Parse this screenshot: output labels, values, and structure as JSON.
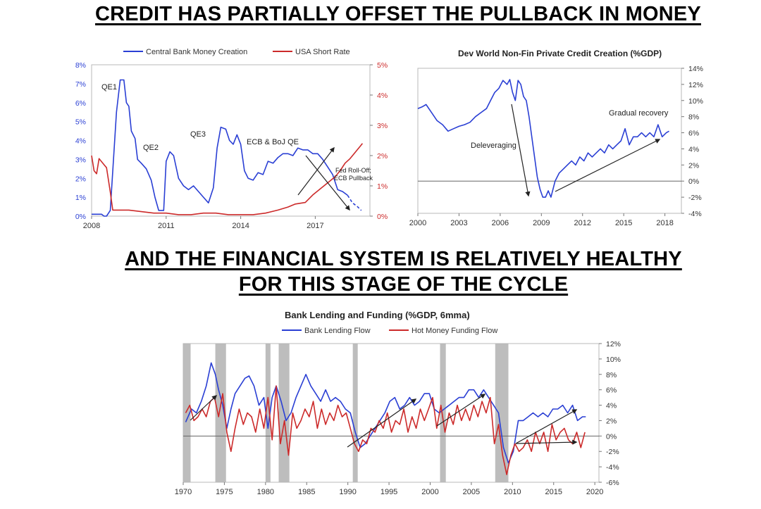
{
  "headlines": {
    "top": "CREDIT HAS PARTIALLY OFFSET THE PULLBACK IN MONEY",
    "bottom_line1": "AND THE FINANCIAL SYSTEM IS RELATIVELY HEALTHY",
    "bottom_line2": "FOR THIS STAGE OF THE CYCLE"
  },
  "colors": {
    "blue": "#2a3fd4",
    "red": "#cc2a2a",
    "shade": "#bdbdbd",
    "axis": "#777777"
  },
  "chart_data": [
    {
      "id": "money_rate",
      "type": "line",
      "title": "",
      "legend": [
        "Central Bank Money Creation",
        "USA Short Rate"
      ],
      "legend_placement": "top",
      "xlim": [
        2008,
        2019.2
      ],
      "x_ticks": [
        2008,
        2011,
        2014,
        2017
      ],
      "y_left": {
        "ticks": [
          0,
          1,
          2,
          3,
          4,
          5,
          6,
          7,
          8
        ],
        "labels": [
          "0%",
          "1%",
          "2%",
          "3%",
          "4%",
          "5%",
          "6%",
          "7%",
          "8%"
        ],
        "lim": [
          0,
          8
        ]
      },
      "y_right": {
        "ticks": [
          0,
          1,
          2,
          3,
          4,
          5
        ],
        "labels": [
          "0%",
          "1%",
          "2%",
          "3%",
          "4%",
          "5%"
        ],
        "lim": [
          0,
          5
        ]
      },
      "annotations": [
        "QE1",
        "QE2",
        "QE3",
        "ECB & BoJ QE",
        "Fed Roll-Off;",
        "ECB Pullback"
      ],
      "series": [
        {
          "name": "Central Bank Money Creation",
          "axis": "left",
          "color": "#2a3fd4",
          "x": [
            2008.0,
            2008.4,
            2008.5,
            2008.6,
            2008.75,
            2009.0,
            2009.15,
            2009.3,
            2009.4,
            2009.5,
            2009.6,
            2009.75,
            2009.85,
            2010.0,
            2010.2,
            2010.4,
            2010.55,
            2010.7,
            2010.9,
            2011.0,
            2011.15,
            2011.3,
            2011.5,
            2011.7,
            2011.9,
            2012.1,
            2012.3,
            2012.5,
            2012.7,
            2012.9,
            2013.05,
            2013.2,
            2013.4,
            2013.55,
            2013.7,
            2013.85,
            2014.0,
            2014.15,
            2014.3,
            2014.5,
            2014.7,
            2014.9,
            2015.1,
            2015.3,
            2015.5,
            2015.7,
            2015.9,
            2016.1,
            2016.3,
            2016.5,
            2016.7,
            2016.9,
            2017.1,
            2017.3,
            2017.5,
            2017.7,
            2017.9,
            2018.1,
            2018.3,
            2018.5,
            2018.7,
            2018.85
          ],
          "y": [
            0.1,
            0.1,
            0.0,
            0.0,
            0.3,
            5.5,
            7.2,
            7.2,
            6.0,
            5.8,
            4.5,
            4.1,
            3.0,
            2.8,
            2.5,
            1.9,
            1.0,
            0.3,
            0.3,
            2.9,
            3.4,
            3.2,
            2.0,
            1.6,
            1.4,
            1.6,
            1.3,
            1.0,
            0.7,
            1.5,
            3.6,
            4.7,
            4.6,
            4.0,
            3.8,
            4.3,
            3.8,
            2.4,
            2.0,
            1.9,
            2.3,
            2.2,
            2.9,
            2.8,
            3.1,
            3.3,
            3.3,
            3.2,
            3.6,
            3.5,
            3.5,
            3.3,
            3.3,
            3.0,
            2.6,
            2.2,
            1.4,
            1.3,
            1.1,
            0.7,
            0.5,
            0.3
          ],
          "dashed_from_x": 2018.5
        },
        {
          "name": "USA Short Rate",
          "axis": "right",
          "color": "#cc2a2a",
          "x": [
            2008.0,
            2008.1,
            2008.2,
            2008.3,
            2008.4,
            2008.5,
            2008.6,
            2008.75,
            2008.85,
            2009.0,
            2009.5,
            2010.0,
            2010.5,
            2011.0,
            2011.5,
            2012.0,
            2012.5,
            2013.0,
            2013.5,
            2014.0,
            2014.5,
            2015.0,
            2015.5,
            2015.9,
            2016.2,
            2016.6,
            2016.9,
            2017.2,
            2017.5,
            2017.8,
            2018.0,
            2018.2,
            2018.4,
            2018.6,
            2018.8,
            2018.9
          ],
          "y": [
            2.0,
            1.5,
            1.4,
            1.9,
            1.8,
            1.7,
            1.6,
            0.8,
            0.2,
            0.2,
            0.2,
            0.15,
            0.1,
            0.1,
            0.05,
            0.05,
            0.1,
            0.1,
            0.05,
            0.05,
            0.05,
            0.1,
            0.2,
            0.3,
            0.4,
            0.45,
            0.7,
            0.9,
            1.1,
            1.3,
            1.5,
            1.75,
            1.9,
            2.1,
            2.3,
            2.4
          ]
        }
      ]
    },
    {
      "id": "private_credit",
      "type": "line",
      "title": "Dev World Non-Fin Private Credit Creation (%GDP)",
      "xlim": [
        2000,
        2019.2
      ],
      "x_ticks": [
        2000,
        2003,
        2006,
        2009,
        2012,
        2015,
        2018
      ],
      "y_right": {
        "ticks": [
          -4,
          -2,
          0,
          2,
          4,
          6,
          8,
          10,
          12,
          14
        ],
        "labels": [
          "-4%",
          "-2%",
          "0%",
          "2%",
          "4%",
          "6%",
          "8%",
          "10%",
          "12%",
          "14%"
        ],
        "lim": [
          -4,
          14
        ]
      },
      "annotations": [
        "Deleveraging",
        "Gradual recovery"
      ],
      "series": [
        {
          "name": "",
          "axis": "right",
          "color": "#2a3fd4",
          "x": [
            2000.0,
            2000.3,
            2000.6,
            2001.0,
            2001.4,
            2001.8,
            2002.2,
            2002.6,
            2003.0,
            2003.4,
            2003.8,
            2004.2,
            2004.6,
            2005.0,
            2005.3,
            2005.6,
            2005.9,
            2006.2,
            2006.5,
            2006.7,
            2006.9,
            2007.1,
            2007.3,
            2007.5,
            2007.7,
            2007.9,
            2008.1,
            2008.3,
            2008.5,
            2008.7,
            2008.9,
            2009.1,
            2009.3,
            2009.5,
            2009.7,
            2010.0,
            2010.3,
            2010.6,
            2010.9,
            2011.2,
            2011.5,
            2011.8,
            2012.1,
            2012.4,
            2012.7,
            2013.0,
            2013.3,
            2013.6,
            2013.9,
            2014.2,
            2014.5,
            2014.8,
            2015.1,
            2015.4,
            2015.7,
            2016.0,
            2016.3,
            2016.6,
            2016.9,
            2017.2,
            2017.5,
            2017.8,
            2018.1,
            2018.3
          ],
          "y": [
            9.0,
            9.2,
            9.5,
            8.5,
            7.5,
            7.0,
            6.2,
            6.5,
            6.8,
            7.0,
            7.3,
            8.0,
            8.5,
            9.0,
            10.0,
            11.0,
            11.5,
            12.5,
            12.0,
            12.6,
            11.0,
            10.0,
            12.5,
            12.0,
            10.5,
            10.0,
            8.0,
            5.5,
            3.0,
            0.5,
            -1.0,
            -2.0,
            -2.0,
            -1.2,
            -2.0,
            0.0,
            1.0,
            1.5,
            2.0,
            2.5,
            2.0,
            3.0,
            2.5,
            3.5,
            3.0,
            3.5,
            4.0,
            3.5,
            4.5,
            4.0,
            4.5,
            5.0,
            6.5,
            4.5,
            5.5,
            5.5,
            6.0,
            5.5,
            6.0,
            5.5,
            7.0,
            5.5,
            6.0,
            6.2
          ]
        }
      ]
    },
    {
      "id": "bank_lending",
      "type": "line",
      "title": "Bank Lending and Funding (%GDP, 6mma)",
      "legend": [
        "Bank Lending Flow",
        "Hot Money Funding Flow"
      ],
      "legend_placement": "top",
      "xlim": [
        1970,
        2020.5
      ],
      "x_ticks": [
        1970,
        1975,
        1980,
        1985,
        1990,
        1995,
        2000,
        2005,
        2010,
        2015,
        2020
      ],
      "y_right": {
        "ticks": [
          -6,
          -4,
          -2,
          0,
          2,
          4,
          6,
          8,
          10,
          12
        ],
        "labels": [
          "-6%",
          "-4%",
          "-2%",
          "0%",
          "2%",
          "4%",
          "6%",
          "8%",
          "10%",
          "12%"
        ],
        "lim": [
          -6,
          12
        ]
      },
      "recessions": [
        [
          1970.0,
          1970.9
        ],
        [
          1973.9,
          1975.2
        ],
        [
          1980.0,
          1980.6
        ],
        [
          1981.6,
          1982.9
        ],
        [
          1990.6,
          1991.2
        ],
        [
          2001.2,
          2001.9
        ],
        [
          2007.9,
          2009.5
        ]
      ],
      "series": [
        {
          "name": "Bank Lending Flow",
          "axis": "right",
          "color": "#2a3fd4",
          "x": [
            1970.3,
            1971.0,
            1971.6,
            1972.2,
            1972.8,
            1973.4,
            1973.9,
            1974.3,
            1974.8,
            1975.3,
            1975.8,
            1976.3,
            1976.9,
            1977.5,
            1978.0,
            1978.6,
            1979.2,
            1979.8,
            1980.3,
            1980.8,
            1981.3,
            1981.9,
            1982.5,
            1983.1,
            1983.7,
            1984.3,
            1984.9,
            1985.5,
            1986.1,
            1986.7,
            1987.3,
            1987.9,
            1988.5,
            1989.1,
            1989.7,
            1990.3,
            1990.9,
            1991.5,
            1992.1,
            1992.7,
            1993.3,
            1993.9,
            1994.5,
            1995.1,
            1995.7,
            1996.3,
            1996.9,
            1997.5,
            1998.1,
            1998.7,
            1999.3,
            1999.9,
            2000.5,
            2001.1,
            2001.7,
            2002.3,
            2002.9,
            2003.5,
            2004.1,
            2004.7,
            2005.3,
            2005.9,
            2006.5,
            2007.1,
            2007.7,
            2008.3,
            2008.9,
            2009.5,
            2010.1,
            2010.7,
            2011.3,
            2011.9,
            2012.5,
            2013.1,
            2013.7,
            2014.3,
            2014.9,
            2015.5,
            2016.1,
            2016.7,
            2017.3,
            2017.9,
            2018.5,
            2018.9
          ],
          "x_note": "",
          "y": [
            1.8,
            3.5,
            3.0,
            4.5,
            6.5,
            9.5,
            8.0,
            6.0,
            4.0,
            1.0,
            3.5,
            5.5,
            6.5,
            7.5,
            7.8,
            6.5,
            4.0,
            5.0,
            1.0,
            5.0,
            6.5,
            4.5,
            2.0,
            3.0,
            5.0,
            6.5,
            8.0,
            6.5,
            5.5,
            4.5,
            6.0,
            4.5,
            5.0,
            4.5,
            3.5,
            3.0,
            0.5,
            -1.5,
            -1.0,
            0.0,
            1.0,
            2.0,
            3.0,
            4.5,
            5.0,
            3.5,
            4.0,
            5.0,
            4.0,
            4.5,
            5.5,
            5.5,
            3.5,
            3.0,
            3.5,
            4.0,
            4.5,
            5.0,
            5.0,
            6.0,
            6.0,
            5.0,
            6.0,
            5.0,
            4.0,
            3.0,
            -1.5,
            -3.5,
            -2.0,
            2.0,
            2.0,
            2.5,
            3.0,
            2.5,
            3.0,
            2.5,
            3.5,
            3.5,
            4.0,
            3.0,
            4.0,
            2.0,
            2.5,
            2.5
          ]
        },
        {
          "name": "Hot Money Funding Flow",
          "axis": "right",
          "color": "#cc2a2a",
          "x": [
            1970.3,
            1970.8,
            1971.3,
            1971.8,
            1972.3,
            1972.8,
            1973.3,
            1973.8,
            1974.3,
            1974.8,
            1975.3,
            1975.8,
            1976.3,
            1976.8,
            1977.3,
            1977.8,
            1978.3,
            1978.8,
            1979.3,
            1979.8,
            1980.3,
            1980.8,
            1981.3,
            1981.8,
            1982.3,
            1982.8,
            1983.3,
            1983.8,
            1984.3,
            1984.8,
            1985.3,
            1985.8,
            1986.3,
            1986.8,
            1987.3,
            1987.8,
            1988.3,
            1988.8,
            1989.3,
            1989.8,
            1990.3,
            1990.8,
            1991.3,
            1991.8,
            1992.3,
            1992.8,
            1993.3,
            1993.8,
            1994.3,
            1994.8,
            1995.3,
            1995.8,
            1996.3,
            1996.8,
            1997.3,
            1997.8,
            1998.3,
            1998.8,
            1999.3,
            1999.8,
            2000.3,
            2000.8,
            2001.3,
            2001.8,
            2002.3,
            2002.8,
            2003.3,
            2003.8,
            2004.3,
            2004.8,
            2005.3,
            2005.8,
            2006.3,
            2006.8,
            2007.3,
            2007.8,
            2008.3,
            2008.8,
            2009.3,
            2009.8,
            2010.3,
            2010.8,
            2011.3,
            2011.8,
            2012.3,
            2012.8,
            2013.3,
            2013.8,
            2014.3,
            2014.8,
            2015.3,
            2015.8,
            2016.3,
            2016.8,
            2017.3,
            2017.8,
            2018.3,
            2018.8
          ],
          "y": [
            3.0,
            4.0,
            2.0,
            2.5,
            3.5,
            2.5,
            4.5,
            5.0,
            2.5,
            5.5,
            0.5,
            -2.0,
            1.0,
            3.5,
            1.5,
            3.0,
            2.5,
            0.5,
            3.5,
            1.0,
            5.0,
            -0.5,
            6.5,
            -1.0,
            2.0,
            -2.5,
            3.0,
            1.0,
            2.0,
            3.5,
            2.5,
            4.5,
            1.0,
            3.5,
            1.5,
            3.0,
            2.0,
            4.0,
            2.5,
            3.0,
            1.0,
            -1.0,
            -2.0,
            -0.5,
            -1.0,
            1.0,
            0.5,
            2.0,
            1.0,
            3.0,
            0.5,
            2.0,
            1.5,
            3.5,
            0.5,
            2.5,
            1.0,
            3.5,
            2.0,
            3.5,
            5.0,
            1.0,
            4.0,
            0.5,
            3.0,
            1.5,
            4.0,
            2.0,
            3.5,
            2.0,
            4.0,
            2.5,
            4.5,
            3.0,
            5.0,
            -1.0,
            1.5,
            -2.5,
            -5.0,
            -2.5,
            -1.0,
            -2.0,
            -1.5,
            -0.5,
            -2.0,
            0.5,
            -1.0,
            0.5,
            -2.0,
            1.5,
            -0.5,
            0.5,
            1.0,
            -0.5,
            -1.0,
            0.5,
            -1.5,
            0.5
          ]
        }
      ]
    }
  ]
}
